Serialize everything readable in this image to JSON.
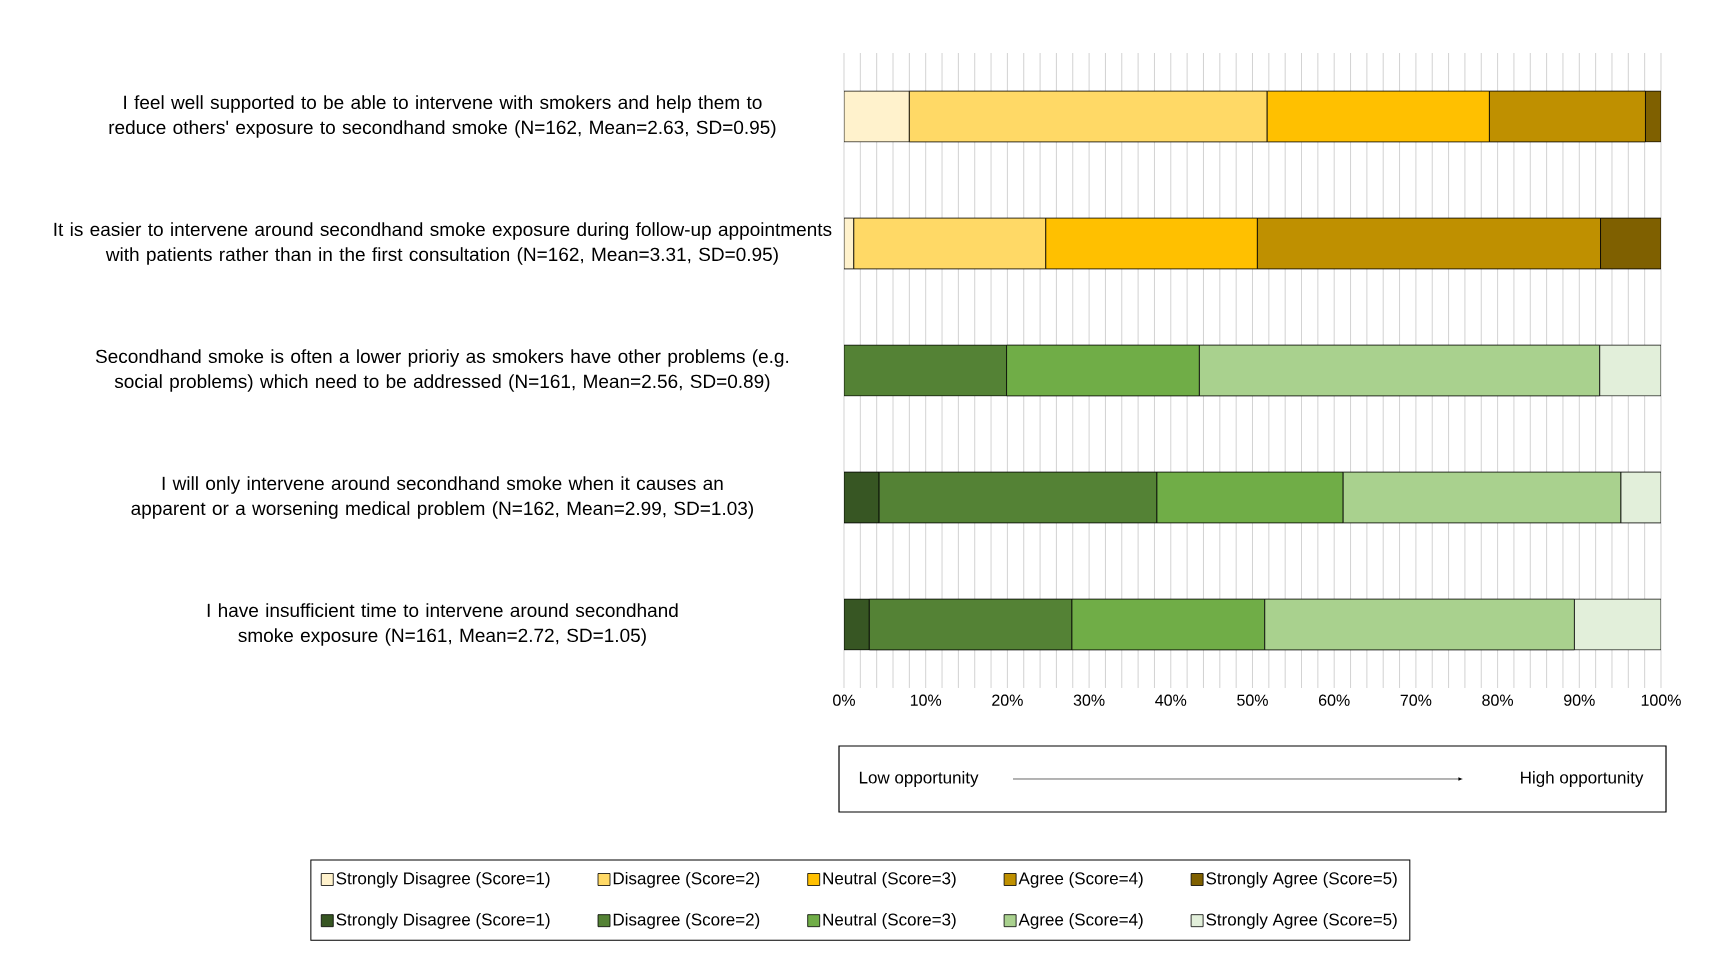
{
  "chart_data": {
    "type": "bar",
    "orientation": "horizontal",
    "stacked": true,
    "categories": [
      "I feel well supported to be able to intervene with smokers and help them to reduce others' exposure to secondhand smoke (N=162, Mean=2.63, SD=0.95)",
      "It is easier to intervene around secondhand smoke exposure during follow-up appointments with patients rather than in the first consultation (N=162, Mean=3.31, SD=0.95)",
      "Secondhand smoke is often a lower prioriy as smokers have other problems (e.g. social problems) which need to be addressed (N=161, Mean=2.56, SD=0.89)",
      "I will only intervene around secondhand smoke when it causes an apparent or a worsening medical problem (N=162, Mean=2.99, SD=1.03)",
      "I have insufficient time to intervene around secondhand smoke exposure (N=161, Mean=2.72, SD=1.05)"
    ],
    "series": [
      {
        "name": "Strongly Disagree (Score=1)",
        "color": "#fff2cc",
        "values": [
          8.0,
          1.2,
          null,
          null,
          null
        ]
      },
      {
        "name": "Disagree (Score=2)",
        "color": "#ffd966",
        "values": [
          43.8,
          23.5,
          null,
          null,
          null
        ]
      },
      {
        "name": "Neutral (Score=3)",
        "color": "#ffc000",
        "values": [
          27.2,
          25.9,
          null,
          null,
          null
        ]
      },
      {
        "name": "Agree (Score=4)",
        "color": "#bf9000",
        "values": [
          19.1,
          42.0,
          null,
          null,
          null
        ]
      },
      {
        "name": "Strongly Agree (Score=5)",
        "color": "#7f6000",
        "values": [
          1.9,
          7.4,
          null,
          null,
          null
        ]
      },
      {
        "name": "Strongly Disagree (Score=1)",
        "color": "#375623",
        "values": [
          null,
          null,
          null,
          4.3,
          3.1
        ]
      },
      {
        "name": "Disagree (Score=2)",
        "color": "#548235",
        "values": [
          null,
          null,
          19.9,
          34.0,
          24.8
        ]
      },
      {
        "name": "Neutral (Score=3)",
        "color": "#70ad47",
        "values": [
          null,
          null,
          23.6,
          22.8,
          23.6
        ]
      },
      {
        "name": "Agree (Score=4)",
        "color": "#a9d18e",
        "values": [
          null,
          null,
          49.0,
          34.0,
          37.9
        ]
      },
      {
        "name": "Strongly Agree (Score=5)",
        "color": "#e2efda",
        "values": [
          null,
          null,
          7.5,
          4.9,
          10.6
        ]
      }
    ],
    "xlim": [
      0,
      100
    ],
    "xticks": [
      {
        "value": 0,
        "label": "0%"
      },
      {
        "value": 10,
        "label": "10%"
      },
      {
        "value": 20,
        "label": "20%"
      },
      {
        "value": 30,
        "label": "30%"
      },
      {
        "value": 40,
        "label": "40%"
      },
      {
        "value": 50,
        "label": "50%"
      },
      {
        "value": 60,
        "label": "60%"
      },
      {
        "value": 70,
        "label": "70%"
      },
      {
        "value": 80,
        "label": "80%"
      },
      {
        "value": 90,
        "label": "90%"
      },
      {
        "value": 100,
        "label": "100%"
      }
    ],
    "grid": "x",
    "legend": "bottom",
    "annotations": [
      "Low opportunity",
      "High opportunity"
    ]
  }
}
